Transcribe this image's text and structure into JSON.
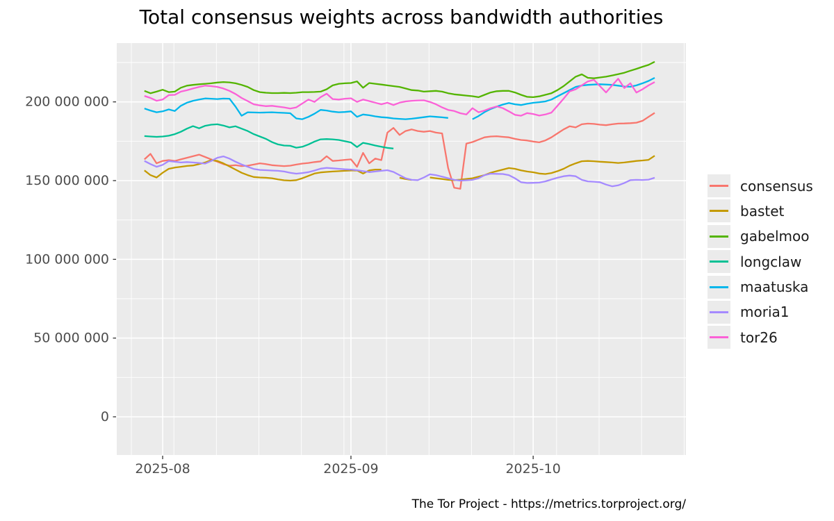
{
  "title": "Total consensus weights across bandwidth authorities",
  "footer": "The Tor Project - https://metrics.torproject.org/",
  "colors": {
    "panel_background": "#EBEBEB",
    "gridline": "#FFFFFF",
    "tick_mark": "#333333",
    "tick_label": "#4D4D4D",
    "title_text": "#000000",
    "legend_key_background": "#EBEBEB"
  },
  "axes": {
    "y": {
      "tick_values_millions": [
        0,
        50,
        100,
        150,
        200
      ],
      "tick_labels": [
        "0",
        "50 000 000",
        "100 000 000",
        "150 000 000",
        "200 000 000"
      ],
      "minor_values_millions": [
        25,
        75,
        125,
        175,
        225
      ]
    },
    "x": {
      "tick_labels": [
        "2025-08",
        "2025-09",
        "2025-10"
      ],
      "tick_dates": [
        "2025-08-01",
        "2025-09-01",
        "2025-10-01"
      ]
    }
  },
  "chart_data": {
    "type": "line",
    "title": "Total consensus weights across bandwidth authorities",
    "xlabel": "",
    "ylabel": "",
    "x_start_date": "2025-07-29",
    "x_step_days": 1,
    "n_points": 85,
    "values_unit": 1000000,
    "ylim_millions": [
      0,
      237
    ],
    "grid": true,
    "legend_position": "right",
    "series": [
      {
        "name": "consensus",
        "color": "#F8766D",
        "values_millions": [
          163.5,
          167.0,
          161.0,
          162.5,
          163.0,
          162.5,
          163.5,
          164.5,
          165.5,
          166.5,
          165.0,
          163.5,
          162.0,
          160.5,
          159.5,
          159.8,
          159.2,
          159.5,
          160.2,
          161.0,
          160.5,
          159.8,
          159.5,
          159.2,
          159.5,
          160.2,
          160.8,
          161.2,
          161.8,
          162.2,
          165.5,
          162.5,
          162.8,
          163.2,
          163.5,
          158.8,
          167.6,
          161.0,
          164.0,
          163.0,
          180.5,
          183.5,
          179.0,
          181.5,
          182.5,
          181.5,
          181.0,
          181.5,
          180.5,
          180.0,
          158.0,
          145.5,
          144.8,
          173.5,
          174.5,
          176.0,
          177.5,
          178.0,
          178.2,
          177.8,
          177.5,
          176.5,
          175.8,
          175.5,
          174.8,
          174.3,
          175.5,
          177.5,
          180.0,
          182.5,
          184.5,
          183.8,
          185.8,
          186.2,
          186.0,
          185.5,
          185.2,
          185.8,
          186.2,
          186.3,
          186.5,
          186.8,
          188.0,
          190.5,
          193.0
        ]
      },
      {
        "name": "bastet",
        "color": "#C49A00",
        "values_millions": [
          156.5,
          153.5,
          152.0,
          155.0,
          157.5,
          158.3,
          158.8,
          159.3,
          159.6,
          160.5,
          161.5,
          163.0,
          162.5,
          161.0,
          159.0,
          157.0,
          155.0,
          153.5,
          152.3,
          152.0,
          151.8,
          151.5,
          150.8,
          150.2,
          150.0,
          150.3,
          151.5,
          153.0,
          154.5,
          155.2,
          155.5,
          155.8,
          156.0,
          156.2,
          156.4,
          156.5,
          154.5,
          156.5,
          157.0,
          157.0,
          null,
          null,
          151.8,
          151.0,
          150.4,
          null,
          null,
          152.0,
          151.5,
          151.0,
          150.5,
          150.3,
          150.6,
          151.0,
          151.5,
          152.5,
          153.5,
          155.0,
          156.0,
          157.0,
          158.0,
          157.5,
          156.5,
          155.8,
          155.3,
          154.5,
          154.2,
          154.8,
          156.0,
          157.5,
          159.5,
          161.0,
          162.3,
          162.5,
          162.3,
          162.0,
          161.8,
          161.5,
          161.2,
          161.5,
          162.0,
          162.5,
          162.8,
          163.2,
          165.8
        ]
      },
      {
        "name": "gabelmoo",
        "color": "#53B400",
        "values_millions": [
          207.0,
          205.5,
          206.5,
          207.7,
          206.2,
          206.5,
          209.0,
          210.3,
          210.8,
          211.2,
          211.5,
          211.8,
          212.3,
          212.6,
          212.4,
          211.8,
          210.8,
          209.5,
          207.5,
          206.2,
          205.8,
          205.6,
          205.6,
          205.7,
          205.6,
          205.8,
          206.2,
          206.2,
          206.3,
          206.5,
          208.0,
          210.5,
          211.5,
          211.8,
          212.0,
          213.0,
          209.0,
          212.0,
          211.5,
          211.0,
          210.5,
          210.0,
          209.5,
          208.5,
          207.5,
          207.2,
          206.5,
          206.8,
          207.0,
          206.5,
          205.5,
          204.8,
          204.4,
          204.0,
          203.6,
          203.0,
          204.5,
          206.0,
          206.8,
          207.0,
          207.0,
          206.0,
          204.5,
          203.2,
          203.0,
          203.5,
          204.5,
          205.5,
          207.5,
          210.0,
          213.0,
          216.0,
          217.5,
          215.3,
          215.0,
          215.5,
          216.0,
          216.8,
          217.6,
          218.5,
          219.8,
          221.0,
          222.3,
          223.5,
          225.5
        ]
      },
      {
        "name": "longclaw",
        "color": "#00C094",
        "values_millions": [
          178.3,
          178.0,
          177.8,
          178.0,
          178.5,
          179.5,
          181.0,
          183.0,
          184.6,
          183.2,
          184.8,
          185.5,
          185.8,
          185.0,
          183.8,
          184.5,
          183.0,
          181.5,
          179.5,
          178.0,
          176.5,
          174.5,
          173.0,
          172.3,
          172.1,
          170.9,
          171.5,
          173.0,
          174.8,
          176.2,
          176.4,
          176.2,
          175.8,
          175.0,
          174.2,
          171.3,
          174.0,
          173.2,
          172.3,
          171.5,
          170.8,
          170.4,
          null,
          null,
          null,
          null,
          null,
          null,
          null,
          null,
          null,
          null,
          null,
          null,
          null,
          null,
          null,
          null,
          null,
          null,
          null,
          null,
          null,
          null,
          null,
          null,
          null,
          null,
          null,
          null,
          null,
          null,
          null,
          null,
          null,
          null,
          null,
          null,
          null,
          null,
          null,
          null,
          null,
          null,
          null
        ]
      },
      {
        "name": "maatuska",
        "color": "#00B6EB",
        "values_millions": [
          195.8,
          194.5,
          193.4,
          194.0,
          195.2,
          194.2,
          197.5,
          199.5,
          200.7,
          201.5,
          202.2,
          202.0,
          201.8,
          202.1,
          202.0,
          197.0,
          191.2,
          193.4,
          193.3,
          193.2,
          193.3,
          193.4,
          193.2,
          193.0,
          192.8,
          189.5,
          189.0,
          190.5,
          192.5,
          194.9,
          194.5,
          193.8,
          193.4,
          193.6,
          194.0,
          190.5,
          192.0,
          191.5,
          190.8,
          190.3,
          190.0,
          189.5,
          189.2,
          189.0,
          189.3,
          189.8,
          190.3,
          190.8,
          190.5,
          190.2,
          189.8,
          null,
          null,
          null,
          189.0,
          191.0,
          193.5,
          195.5,
          197.0,
          198.3,
          199.3,
          198.5,
          198.0,
          198.8,
          199.4,
          199.8,
          200.3,
          201.5,
          203.5,
          205.5,
          207.5,
          209.5,
          210.4,
          210.8,
          211.0,
          211.2,
          211.0,
          210.8,
          210.3,
          209.8,
          209.6,
          210.5,
          211.8,
          213.3,
          215.3
        ]
      },
      {
        "name": "moria1",
        "color": "#A58AFF",
        "values_millions": [
          162.5,
          160.5,
          158.8,
          160.0,
          162.4,
          162.0,
          161.5,
          161.8,
          161.5,
          161.2,
          160.8,
          162.5,
          164.5,
          165.4,
          164.0,
          162.0,
          160.3,
          158.8,
          157.4,
          156.8,
          156.6,
          156.4,
          156.2,
          155.8,
          155.0,
          154.4,
          154.8,
          155.4,
          156.4,
          157.6,
          158.1,
          157.8,
          157.5,
          157.2,
          157.0,
          156.6,
          156.0,
          155.4,
          155.8,
          156.2,
          156.6,
          155.5,
          153.5,
          151.5,
          150.5,
          150.3,
          152.0,
          154.0,
          153.5,
          152.5,
          151.5,
          150.5,
          150.0,
          150.2,
          150.5,
          151.5,
          153.5,
          154.4,
          154.3,
          154.2,
          153.5,
          151.5,
          149.0,
          148.5,
          148.6,
          148.7,
          149.5,
          150.7,
          151.8,
          152.8,
          153.2,
          152.8,
          150.5,
          149.5,
          149.3,
          149.0,
          147.5,
          146.4,
          147.0,
          148.5,
          150.3,
          150.5,
          150.4,
          150.6,
          151.8
        ]
      },
      {
        "name": "tor26",
        "color": "#FB61D7",
        "values_millions": [
          203.8,
          202.5,
          200.7,
          201.5,
          204.3,
          204.5,
          206.5,
          207.4,
          208.5,
          209.5,
          210.3,
          210.0,
          209.5,
          208.5,
          207.0,
          205.0,
          202.5,
          200.5,
          198.5,
          197.8,
          197.3,
          197.5,
          197.0,
          196.5,
          195.8,
          196.5,
          199.0,
          201.5,
          200.0,
          203.0,
          205.2,
          201.8,
          201.5,
          202.0,
          202.3,
          200.0,
          201.5,
          200.5,
          199.5,
          198.5,
          199.5,
          198.0,
          199.5,
          200.3,
          200.7,
          200.9,
          201.0,
          200.0,
          198.5,
          196.5,
          194.9,
          194.2,
          192.8,
          192.0,
          196.0,
          193.4,
          194.5,
          196.0,
          197.1,
          196.0,
          194.0,
          191.8,
          191.2,
          192.9,
          192.3,
          191.3,
          192.0,
          193.2,
          197.5,
          202.0,
          206.7,
          208.0,
          210.5,
          213.0,
          214.0,
          210.0,
          206.0,
          210.5,
          214.7,
          208.8,
          211.8,
          205.9,
          208.0,
          210.5,
          212.6
        ]
      }
    ]
  }
}
